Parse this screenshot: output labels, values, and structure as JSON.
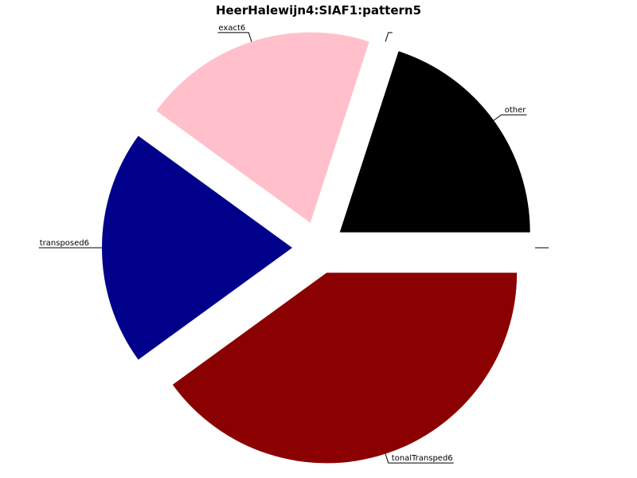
{
  "chart_data": {
    "type": "pie",
    "title": "HeerHalewijn4:SIAF1:pattern5",
    "slices": [
      {
        "label": "other",
        "value": 20,
        "color": "#000000"
      },
      {
        "label": "",
        "value": 0,
        "color": "#ffffff"
      },
      {
        "label": "exact6",
        "value": 20,
        "color": "#ffc0cb"
      },
      {
        "label": "transposed6",
        "value": 20,
        "color": "#00008b"
      },
      {
        "label": "tonalTransped6",
        "value": 40,
        "color": "#8b0000"
      },
      {
        "label": "",
        "value": 0,
        "color": "#ffffff"
      }
    ]
  }
}
